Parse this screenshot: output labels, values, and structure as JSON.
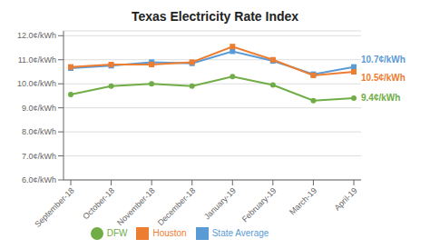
{
  "chart_data": {
    "type": "line",
    "title": "Texas Electricity Rate Index",
    "categories": [
      "September-18",
      "October-18",
      "November-18",
      "December-18",
      "January-19",
      "February-19",
      "March-19",
      "April-19"
    ],
    "series": [
      {
        "name": "State Average",
        "color": "#5b9bd5",
        "marker": "square",
        "values": [
          10.65,
          10.75,
          10.9,
          10.85,
          11.35,
          10.95,
          10.4,
          10.7
        ]
      },
      {
        "name": "Houston",
        "color": "#ed7d31",
        "marker": "square",
        "values": [
          10.7,
          10.8,
          10.8,
          10.9,
          11.55,
          11.0,
          10.35,
          10.5
        ]
      },
      {
        "name": "DFW",
        "color": "#70ad47",
        "marker": "circle",
        "values": [
          9.55,
          9.9,
          10.0,
          9.9,
          10.3,
          9.95,
          9.3,
          9.4
        ]
      }
    ],
    "ylim": [
      6.0,
      12.2
    ],
    "yticks": [
      {
        "value": 6.0,
        "label": "6.0¢/kWh"
      },
      {
        "value": 7.0,
        "label": "7.0¢/kWh"
      },
      {
        "value": 8.0,
        "label": "8.0¢/kWh"
      },
      {
        "value": 9.0,
        "label": "9.0¢/kWh"
      },
      {
        "value": 10.0,
        "label": "10.0¢/kWh"
      },
      {
        "value": 11.0,
        "label": "11.0¢/kWh"
      },
      {
        "value": 12.0,
        "label": "12.0¢/kWh"
      }
    ],
    "grid": true,
    "legend": "bottom",
    "annotations": [
      {
        "series": "State Average",
        "text": "10.7¢/kWh"
      },
      {
        "series": "Houston",
        "text": "10.5¢/kWh"
      },
      {
        "series": "DFW",
        "text": "9.4¢/kWh"
      }
    ]
  }
}
